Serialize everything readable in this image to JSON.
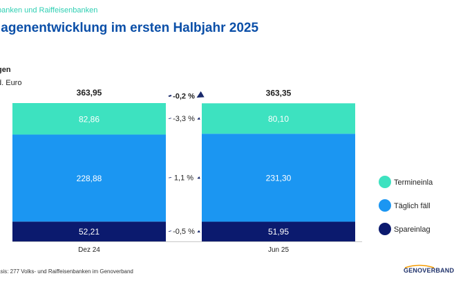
{
  "header": {
    "supertitle": "banken und Raiffeisenbanken",
    "title": "lagenentwicklung im ersten Halbjahr 2025"
  },
  "chart_data": {
    "type": "bar",
    "stacked": true,
    "title": "gen",
    "unit": "d. Euro",
    "categories": [
      "Dez 24",
      "Jun 25"
    ],
    "totals": [
      363.95,
      363.35
    ],
    "total_labels": [
      "363,95",
      "363,35"
    ],
    "series": [
      {
        "name": "Spareinlag",
        "color": "#0b1a6e",
        "text_color": "#ffffff",
        "values": [
          52.21,
          51.95
        ],
        "labels": [
          "52,21",
          "51,95"
        ]
      },
      {
        "name": "Täglich fäll",
        "color": "#1b96f2",
        "text_color": "#ffffff",
        "values": [
          228.88,
          231.3
        ],
        "labels": [
          "228,88",
          "231,30"
        ]
      },
      {
        "name": "Termineinla",
        "color": "#3de2c0",
        "text_color": "#ffffff",
        "values": [
          82.86,
          80.1
        ],
        "labels": [
          "82,86",
          "80,10"
        ]
      }
    ],
    "changes": [
      {
        "target": "total",
        "label": "-0,2 %",
        "bold": true
      },
      {
        "target": "Termineinla",
        "label": "-3,3 %",
        "bold": false
      },
      {
        "target": "Täglich fäll",
        "label": "1,1 %",
        "bold": false
      },
      {
        "target": "Spareinlag",
        "label": "-0,5 %",
        "bold": false
      }
    ],
    "legend_order": [
      "Termineinla",
      "Täglich fäll",
      "Spareinlag"
    ],
    "legend_position": "right",
    "axis_color": "#c8c8c8",
    "arrow_color": "#1a2a6c"
  },
  "footer": {
    "note": "asis: 277 Volks- und Raiffeisenbanken im Genoverband",
    "logo": "GENOVERBAND"
  }
}
